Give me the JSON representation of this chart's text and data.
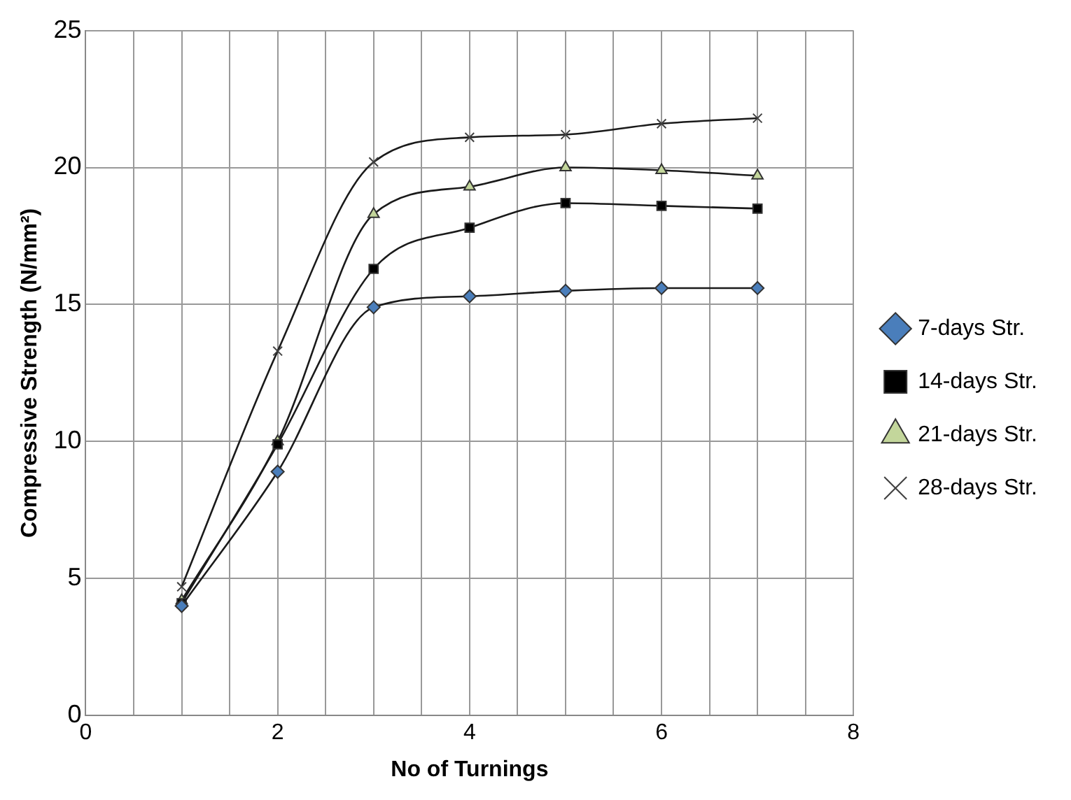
{
  "chart_data": {
    "type": "line",
    "xlabel": "No of Turnings",
    "ylabel": "Compressive Strength (N/mm²)",
    "x": [
      1,
      2,
      3,
      4,
      5,
      6,
      7
    ],
    "series": [
      {
        "name": "7-days Str.",
        "color": "#4a7ebb",
        "marker": "diamond",
        "values": [
          4.0,
          8.9,
          14.9,
          15.3,
          15.5,
          15.6,
          15.6
        ]
      },
      {
        "name": "14-days Str.",
        "color": "#000000",
        "marker": "square",
        "values": [
          4.1,
          9.9,
          16.3,
          17.8,
          18.7,
          18.6,
          18.5
        ]
      },
      {
        "name": "21-days Str.",
        "color": "#c3d69b",
        "marker": "triangle",
        "values": [
          4.2,
          10.0,
          18.3,
          19.3,
          20.0,
          19.9,
          19.7
        ]
      },
      {
        "name": "28-days Str.",
        "color": "#404040",
        "marker": "cross",
        "values": [
          4.7,
          13.3,
          20.2,
          21.1,
          21.2,
          21.6,
          21.8
        ]
      }
    ],
    "xlim": [
      0,
      8
    ],
    "xticks": [
      0,
      {
        "value": 0.5,
        "label": null
      },
      2,
      {
        "value": 1,
        "label": null
      },
      {
        "value": 1.5,
        "label": null
      },
      {
        "value": 2.5,
        "label": null
      },
      {
        "value": 3,
        "label": null
      },
      {
        "value": 3.5,
        "label": null
      },
      4,
      {
        "value": 4.5,
        "label": null
      },
      {
        "value": 5,
        "label": null
      },
      {
        "value": 5.5,
        "label": null
      },
      6,
      {
        "value": 6.5,
        "label": null
      },
      {
        "value": 7,
        "label": null
      },
      {
        "value": 7.5,
        "label": null
      },
      8
    ],
    "ylim": [
      0,
      25
    ],
    "yticks": [
      0,
      5,
      10,
      15,
      20,
      25
    ],
    "grid": true,
    "legend": "right",
    "line_style": "solid"
  }
}
